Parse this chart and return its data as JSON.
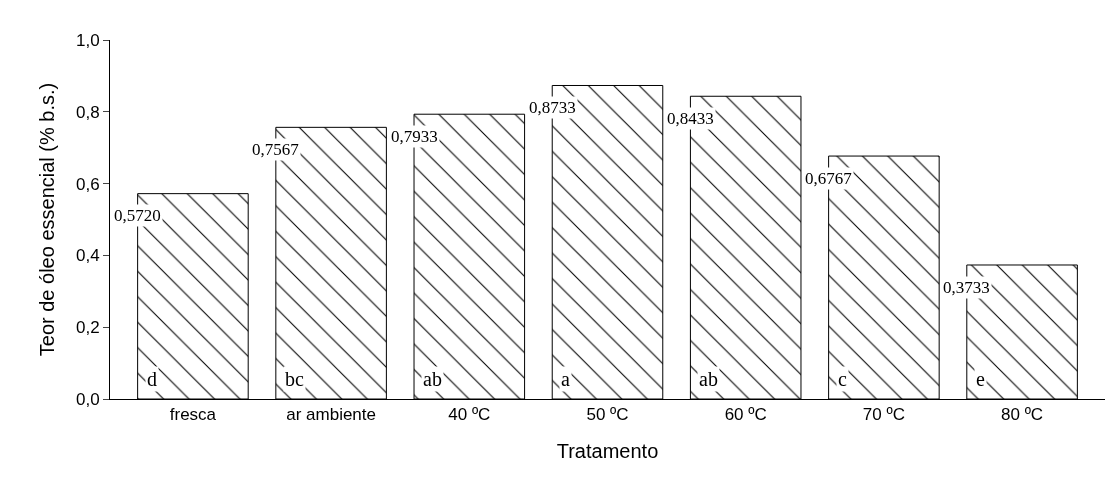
{
  "chart_data": {
    "type": "bar",
    "xlabel": "Tratamento",
    "ylabel": "Teor de óleo essencial (% b.s.)",
    "categories": [
      "fresca",
      "ar ambiente",
      "40 ºC",
      "50 ºC",
      "60 ºC",
      "70 ºC",
      "80 ºC"
    ],
    "values": [
      0.572,
      0.7567,
      0.7933,
      0.8733,
      0.8433,
      0.6767,
      0.3733
    ],
    "value_labels": [
      "0,5720",
      "0,7567",
      "0,7933",
      "0,8733",
      "0,8433",
      "0,6767",
      "0,3733"
    ],
    "color": "#000000",
    "annotations": [
      "d",
      "bc",
      "ab",
      "a",
      "ab",
      "c",
      "e"
    ],
    "ylim": [
      0,
      1
    ],
    "yticks": [
      {
        "value": 0,
        "label": "0,0"
      },
      {
        "value": 0.2,
        "label": "0,2"
      },
      {
        "value": 0.4,
        "label": "0,4"
      },
      {
        "value": 0.6,
        "label": "0,6"
      },
      {
        "value": 0.8,
        "label": "0,8"
      },
      {
        "value": 1,
        "label": "1,0"
      }
    ],
    "legend": false
  }
}
